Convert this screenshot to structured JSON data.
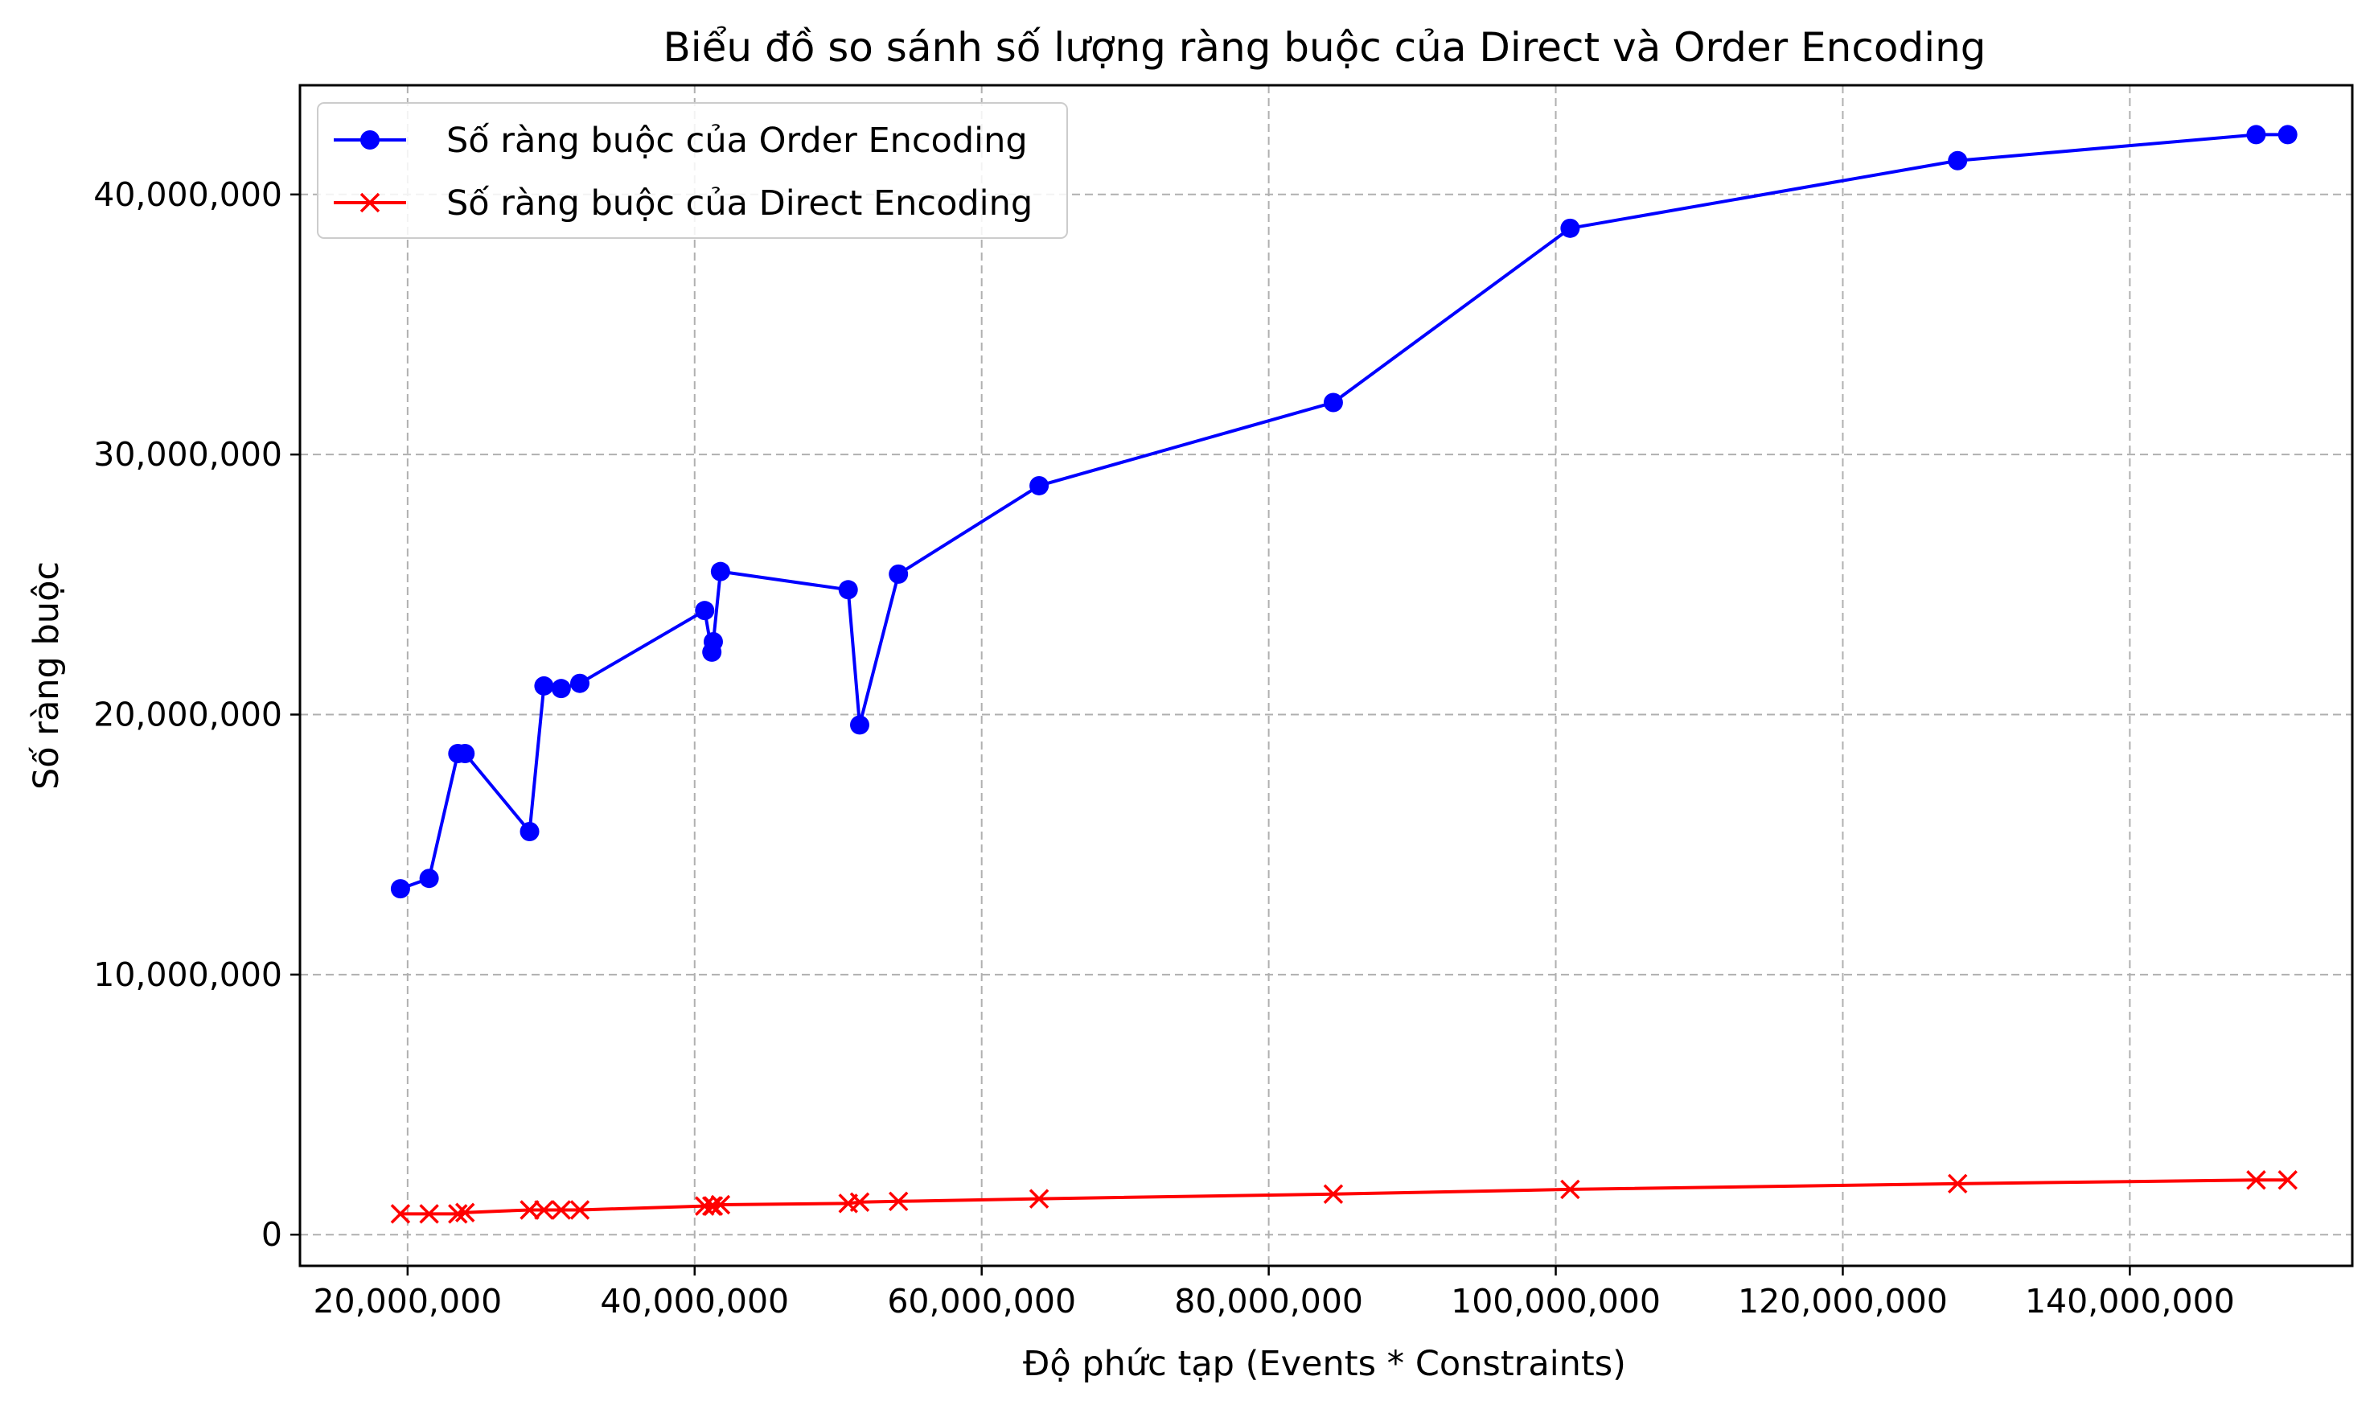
{
  "chart_data": {
    "type": "line",
    "title": "Biểu đồ so sánh số lượng ràng buộc của Direct và Order Encoding",
    "xlabel": "Độ phức tạp (Events * Constraints)",
    "ylabel": "Số ràng buộc",
    "xlim": [
      12500000,
      155500000
    ],
    "ylim": [
      -1200000,
      44200000
    ],
    "xticks": [
      20000000,
      40000000,
      60000000,
      80000000,
      100000000,
      120000000,
      140000000
    ],
    "xtick_labels": [
      "20,000,000",
      "40,000,000",
      "60,000,000",
      "80,000,000",
      "100,000,000",
      "120,000,000",
      "140,000,000"
    ],
    "yticks": [
      0,
      10000000,
      20000000,
      30000000,
      40000000
    ],
    "ytick_labels": [
      "0",
      "10,000,000",
      "20,000,000",
      "30,000,000",
      "40,000,000"
    ],
    "grid": true,
    "legend_position": "top-left",
    "x": [
      19500000,
      21500000,
      23500000,
      24000000,
      28500000,
      29500000,
      30700000,
      32000000,
      40700000,
      41200000,
      41300000,
      41800000,
      50700000,
      51500000,
      54200000,
      64000000,
      84500000,
      101000000,
      128000000,
      148800000,
      151000000
    ],
    "series": [
      {
        "name": "Số ràng buộc của Order Encoding",
        "color": "#0000ff",
        "marker": "circle",
        "values": [
          13300000,
          13700000,
          18500000,
          18500000,
          15500000,
          21100000,
          21000000,
          21200000,
          24000000,
          22400000,
          22800000,
          25500000,
          24800000,
          19600000,
          25400000,
          28800000,
          32000000,
          38700000,
          41300000,
          42300000,
          42300000
        ]
      },
      {
        "name": "Số ràng buộc của Direct Encoding",
        "color": "#ff0000",
        "marker": "x",
        "values": [
          800000,
          800000,
          800000,
          850000,
          950000,
          950000,
          950000,
          950000,
          1100000,
          1100000,
          1100000,
          1150000,
          1200000,
          1250000,
          1280000,
          1380000,
          1560000,
          1740000,
          1960000,
          2100000,
          2100000
        ]
      }
    ]
  }
}
